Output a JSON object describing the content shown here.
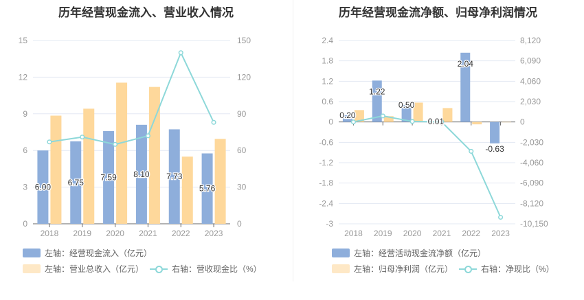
{
  "colors": {
    "blue": "#8eaedb",
    "orange": "#fed89b",
    "line": "#8dd8d9"
  },
  "chart_data": [
    {
      "type": "bar",
      "title": "历年经营现金流入、营业收入情况",
      "categories": [
        "2018",
        "2019",
        "2020",
        "2021",
        "2022",
        "2023"
      ],
      "yleft": {
        "ticks": [
          "0",
          "3",
          "6",
          "9",
          "12",
          "15"
        ],
        "range": [
          0,
          15
        ]
      },
      "yright": {
        "ticks": [
          "0",
          "30",
          "60",
          "90",
          "120",
          "150"
        ],
        "range": [
          0,
          150
        ]
      },
      "series": [
        {
          "name": "左轴：经营现金流入（亿元）",
          "axis": "left",
          "kind": "bar",
          "values": [
            6.0,
            6.75,
            7.59,
            8.1,
            7.73,
            5.76
          ],
          "labels": [
            "6.00",
            "6.75",
            "7.59",
            "8.10",
            "7.73",
            "5.76"
          ]
        },
        {
          "name": "左轴：营业总收入（亿元）",
          "axis": "left",
          "kind": "bar",
          "values": [
            8.85,
            9.42,
            11.55,
            11.2,
            5.5,
            6.95
          ]
        },
        {
          "name": "右轴：营收现金比（%）",
          "axis": "right",
          "kind": "line",
          "values": [
            67,
            71,
            65,
            72,
            140,
            83
          ]
        }
      ]
    },
    {
      "type": "bar",
      "title": "历年经营现金流净额、归母净利润情况",
      "categories": [
        "2018",
        "2019",
        "2020",
        "2021",
        "2022",
        "2023"
      ],
      "yleft": {
        "ticks": [
          "-3",
          "-2.4",
          "-1.8",
          "-1.2",
          "-0.6",
          "0",
          "0.6",
          "1.2",
          "1.8",
          "2.4"
        ],
        "range": [
          -3,
          2.4
        ]
      },
      "yright": {
        "ticks": [
          "-10,150",
          "-8,120",
          "-6,090",
          "-4,060",
          "-2,030",
          "0",
          "2,030",
          "4,060",
          "6,090",
          "8,120"
        ],
        "range": [
          -10150,
          8120
        ]
      },
      "series": [
        {
          "name": "左轴：经营活动现金流净额（亿元）",
          "axis": "left",
          "kind": "bar",
          "values": [
            0.2,
            1.22,
            0.5,
            0.01,
            2.04,
            -0.63
          ],
          "labels": [
            "0.20",
            "1.22",
            "0.50",
            "0.01",
            "2.04",
            "-0.63"
          ]
        },
        {
          "name": "左轴：归母净利润（亿元）",
          "axis": "left",
          "kind": "bar",
          "values": [
            0.35,
            0.17,
            0.57,
            0.41,
            -0.07,
            -0.01
          ]
        },
        {
          "name": "右轴：净现比（%）",
          "axis": "right",
          "kind": "line",
          "values": [
            0,
            600,
            50,
            0,
            -2925,
            -9500
          ]
        }
      ]
    }
  ]
}
